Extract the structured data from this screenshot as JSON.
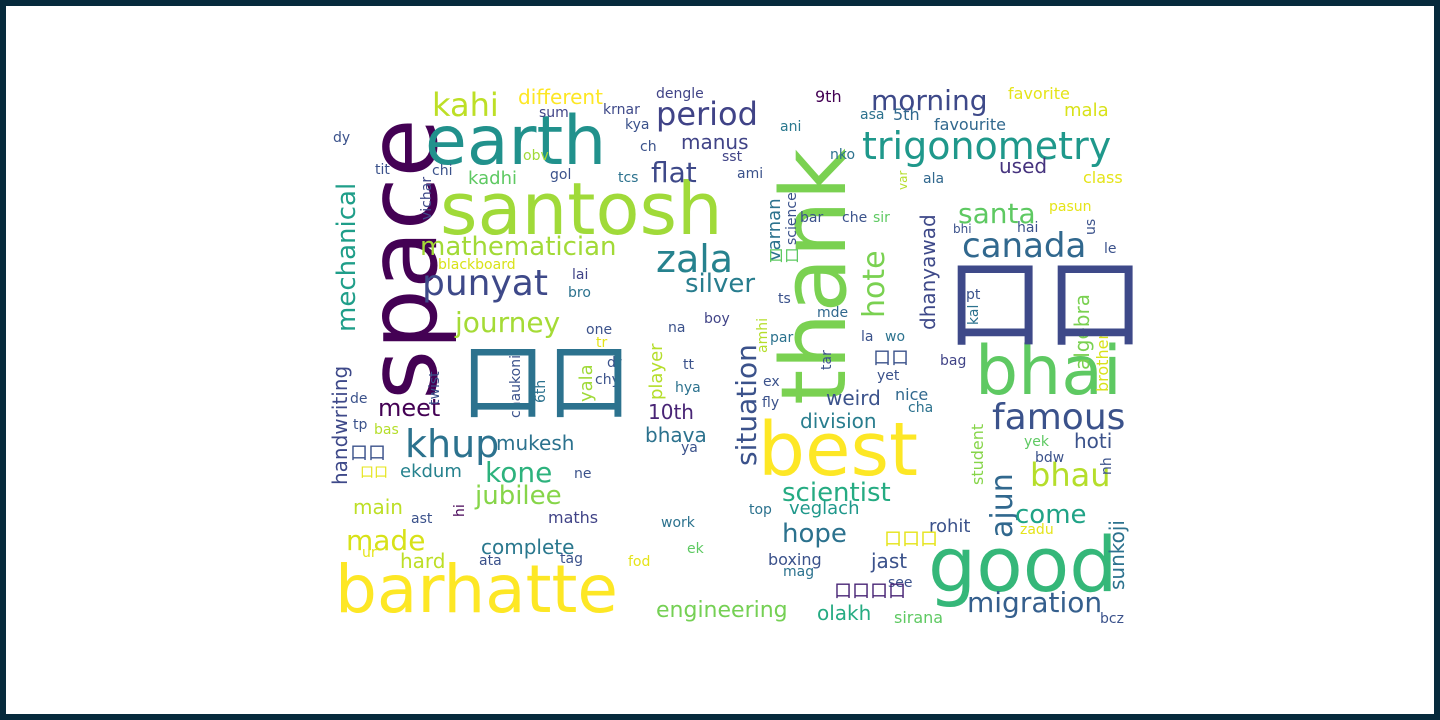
{
  "words": [
    {
      "text": "space",
      "color": "#440154"
    },
    {
      "text": "thank",
      "color": "#7ad151"
    },
    {
      "text": "santosh",
      "color": "#a0da39"
    },
    {
      "text": "earth",
      "color": "#21918c"
    },
    {
      "text": "barhatte",
      "color": "#fde725"
    },
    {
      "text": "good",
      "color": "#35b779"
    },
    {
      "text": "best",
      "color": "#fde725"
    },
    {
      "text": "bhai",
      "color": "#5ec962"
    },
    {
      "text": "trigonometry",
      "color": "#1f988b"
    },
    {
      "text": "punyat",
      "color": "#3e4989"
    },
    {
      "text": "famous",
      "color": "#3b528b"
    },
    {
      "text": "canada",
      "color": "#31688e"
    },
    {
      "text": "zala",
      "color": "#26828e"
    },
    {
      "text": "period",
      "color": "#404387"
    },
    {
      "text": "kahi",
      "color": "#bddf26"
    },
    {
      "text": "morning",
      "color": "#3e4989"
    },
    {
      "text": "bhau",
      "color": "#b5de2b"
    },
    {
      "text": "migration",
      "color": "#355f8d"
    },
    {
      "text": "khup",
      "color": "#2c728e"
    },
    {
      "text": "mechanical",
      "color": "#1f9e89"
    },
    {
      "text": "journey",
      "color": "#a5db36"
    },
    {
      "text": "mathematician",
      "color": "#a2da37"
    },
    {
      "text": "silver",
      "color": "#287d8e"
    },
    {
      "text": "flat",
      "color": "#3e4989"
    },
    {
      "text": "santa",
      "color": "#5ec962"
    },
    {
      "text": "hote",
      "color": "#7ad151"
    },
    {
      "text": "situation",
      "color": "#3b528b"
    },
    {
      "text": "scientist",
      "color": "#25ab82"
    },
    {
      "text": "ajun",
      "color": "#31688e"
    },
    {
      "text": "come",
      "color": "#20a386"
    },
    {
      "text": "hope",
      "color": "#2c728e"
    },
    {
      "text": "made",
      "color": "#d8e219"
    },
    {
      "text": "meet",
      "color": "#440154"
    },
    {
      "text": "kone",
      "color": "#2db27d"
    },
    {
      "text": "jubilee",
      "color": "#86d549"
    },
    {
      "text": "handwriting",
      "color": "#3e4989"
    },
    {
      "text": "mukesh",
      "color": "#2c728e"
    },
    {
      "text": "10th",
      "color": "#482475"
    },
    {
      "text": "weird",
      "color": "#3b528b"
    },
    {
      "text": "division",
      "color": "#287d8e"
    },
    {
      "text": "bhava",
      "color": "#2c728e"
    },
    {
      "text": "engineering",
      "color": "#75d054"
    },
    {
      "text": "olakh",
      "color": "#25ab82"
    },
    {
      "text": "complete",
      "color": "#2a788e"
    },
    {
      "text": "different",
      "color": "#fde725"
    },
    {
      "text": "manus",
      "color": "#414487"
    },
    {
      "text": "used",
      "color": "#46337e"
    },
    {
      "text": "hoti",
      "color": "#3b528b"
    },
    {
      "text": "dhanyawad",
      "color": "#3e4989"
    },
    {
      "text": "algebra",
      "color": "#7ad151"
    },
    {
      "text": "sunkoji",
      "color": "#2c728e"
    },
    {
      "text": "jast",
      "color": "#3b528b"
    },
    {
      "text": "rohit",
      "color": "#3b528b"
    },
    {
      "text": "veglach",
      "color": "#1f988b"
    },
    {
      "text": "main",
      "color": "#bddf26"
    },
    {
      "text": "ekdum",
      "color": "#26828e"
    },
    {
      "text": "maths",
      "color": "#414487"
    },
    {
      "text": "hard",
      "color": "#bddf26"
    },
    {
      "text": "mala",
      "color": "#d8e219"
    },
    {
      "text": "class",
      "color": "#e5e419"
    },
    {
      "text": "favourite",
      "color": "#31688e"
    },
    {
      "text": "favorite",
      "color": "#e5e419"
    },
    {
      "text": "kadhi",
      "color": "#5ec962"
    },
    {
      "text": "varnan",
      "color": "#2c728e"
    },
    {
      "text": "player",
      "color": "#b5de2b"
    },
    {
      "text": "yala",
      "color": "#a0da39"
    },
    {
      "text": "student",
      "color": "#86d549"
    },
    {
      "text": "brother",
      "color": "#d8e219"
    },
    {
      "text": "nice",
      "color": "#31688e"
    },
    {
      "text": "9th",
      "color": "#440154"
    },
    {
      "text": "5th",
      "color": "#31688e"
    },
    {
      "text": "asa",
      "color": "#2c728e"
    },
    {
      "text": "dengle",
      "color": "#414487"
    },
    {
      "text": "sum",
      "color": "#414487"
    },
    {
      "text": "krnar",
      "color": "#3e4989"
    },
    {
      "text": "kya",
      "color": "#3b528b"
    },
    {
      "text": "ani",
      "color": "#2a788e"
    },
    {
      "text": "ch",
      "color": "#3b528b"
    },
    {
      "text": "sst",
      "color": "#414487"
    },
    {
      "text": "obv",
      "color": "#a0da39"
    },
    {
      "text": "chi",
      "color": "#3b528b"
    },
    {
      "text": "tcs",
      "color": "#2c728e"
    },
    {
      "text": "ami",
      "color": "#3b528b"
    },
    {
      "text": "nko",
      "color": "#2c728e"
    },
    {
      "text": "gol",
      "color": "#3b528b"
    },
    {
      "text": "dy",
      "color": "#3b528b"
    },
    {
      "text": "tit",
      "color": "#3b528b"
    },
    {
      "text": "vichar",
      "color": "#3e4989"
    },
    {
      "text": "blackboard",
      "color": "#d8e219"
    },
    {
      "text": "lai",
      "color": "#414487"
    },
    {
      "text": "bro",
      "color": "#2c728e"
    },
    {
      "text": "one",
      "color": "#3b528b"
    },
    {
      "text": "na",
      "color": "#3b528b"
    },
    {
      "text": "boy",
      "color": "#414487"
    },
    {
      "text": "ts",
      "color": "#3b528b"
    },
    {
      "text": "par",
      "color": "#2c728e"
    },
    {
      "text": "mde",
      "color": "#31688e"
    },
    {
      "text": "amhi",
      "color": "#b5de2b"
    },
    {
      "text": "science",
      "color": "#3b528b"
    },
    {
      "text": "bar",
      "color": "#3b528b"
    },
    {
      "text": "che",
      "color": "#3b528b"
    },
    {
      "text": "sir",
      "color": "#5ec962"
    },
    {
      "text": "var",
      "color": "#b5de2b"
    },
    {
      "text": "ala",
      "color": "#31688e"
    },
    {
      "text": "bhi",
      "color": "#3b528b"
    },
    {
      "text": "hai",
      "color": "#3b528b"
    },
    {
      "text": "pasun",
      "color": "#e5e419"
    },
    {
      "text": "us",
      "color": "#3b528b"
    },
    {
      "text": "le",
      "color": "#3b528b"
    },
    {
      "text": "pt",
      "color": "#3b528b"
    },
    {
      "text": "kal",
      "color": "#2c728e"
    },
    {
      "text": "la",
      "color": "#3b528b"
    },
    {
      "text": "wo",
      "color": "#2c728e"
    },
    {
      "text": "tar",
      "color": "#3b528b"
    },
    {
      "text": "yet",
      "color": "#3b528b"
    },
    {
      "text": "bag",
      "color": "#414487"
    },
    {
      "text": "cha",
      "color": "#2c728e"
    },
    {
      "text": "tt",
      "color": "#3b528b"
    },
    {
      "text": "hya",
      "color": "#2c728e"
    },
    {
      "text": "ex",
      "color": "#3b528b"
    },
    {
      "text": "fly",
      "color": "#3b528b"
    },
    {
      "text": "ya",
      "color": "#3b528b"
    },
    {
      "text": "twist",
      "color": "#3b528b"
    },
    {
      "text": "tr",
      "color": "#e5e419"
    },
    {
      "text": "chaukoni",
      "color": "#3b528b"
    },
    {
      "text": "6th",
      "color": "#2c728e"
    },
    {
      "text": "dr",
      "color": "#3b528b"
    },
    {
      "text": "chy",
      "color": "#3b528b"
    },
    {
      "text": "de",
      "color": "#3b528b"
    },
    {
      "text": "tp",
      "color": "#3b528b"
    },
    {
      "text": "bas",
      "color": "#b5de2b"
    },
    {
      "text": "ne",
      "color": "#3b528b"
    },
    {
      "text": "hi",
      "color": "#440154"
    },
    {
      "text": "ast",
      "color": "#3b528b"
    },
    {
      "text": "ur",
      "color": "#e5e419"
    },
    {
      "text": "ata",
      "color": "#3b528b"
    },
    {
      "text": "tag",
      "color": "#3b528b"
    },
    {
      "text": "fod",
      "color": "#e5e419"
    },
    {
      "text": "ek",
      "color": "#5ec962"
    },
    {
      "text": "work",
      "color": "#2c728e"
    },
    {
      "text": "top",
      "color": "#2c728e"
    },
    {
      "text": "boxing",
      "color": "#3b528b"
    },
    {
      "text": "mag",
      "color": "#2c728e"
    },
    {
      "text": "see",
      "color": "#3b528b"
    },
    {
      "text": "sirana",
      "color": "#5ec962"
    },
    {
      "text": "zadu",
      "color": "#e5e419"
    },
    {
      "text": "yek",
      "color": "#5ec962"
    },
    {
      "text": "bdw",
      "color": "#3b528b"
    },
    {
      "text": "nh",
      "color": "#3b528b"
    },
    {
      "text": "bcz",
      "color": "#3b528b"
    },
    {
      "text": "口口",
      "color": "#3e4989"
    },
    {
      "text": "口口",
      "color": "#2c728e"
    },
    {
      "text": "口口",
      "color": "#5ec962"
    },
    {
      "text": "口口口",
      "color": "#e5e419"
    },
    {
      "text": "口口口口",
      "color": "#482475"
    },
    {
      "text": "口口",
      "color": "#3b528b"
    },
    {
      "text": "口口",
      "color": "#3b528b"
    },
    {
      "text": "口口",
      "color": "#e5e419"
    }
  ]
}
